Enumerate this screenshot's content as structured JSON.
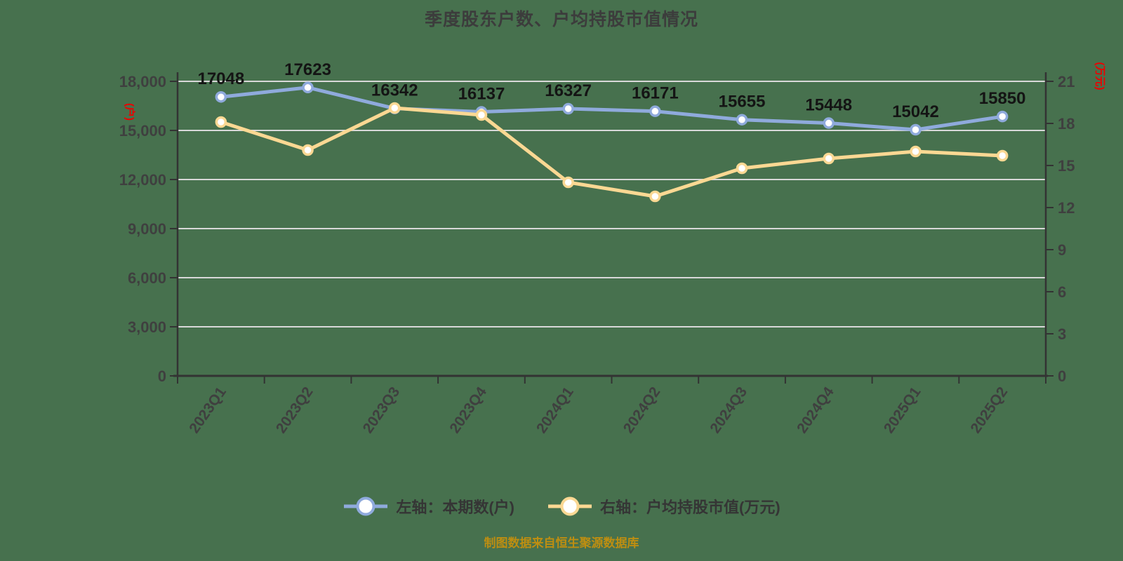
{
  "title": "季度股东户数、户均持股市值情况",
  "footer": "制图数据来自恒生聚源数据库",
  "colors": {
    "background": "#47714E",
    "title": "#3C3C3C",
    "grid": "#D8D8D8",
    "axis": "#333333",
    "tick_label": "#3F3F3F",
    "data_label": "#141414",
    "unit_label": "#EE0000",
    "footer": "#BE8E11",
    "legend_text": "#353535",
    "series_blue": "#8FAADC",
    "series_yellow": "#FBD893",
    "marker_fill": "#FFFFFF"
  },
  "chart_data": {
    "type": "line",
    "title": "季度股东户数、户均持股市值情况",
    "categories": [
      "2023Q1",
      "2023Q2",
      "2023Q3",
      "2023Q4",
      "2024Q1",
      "2024Q2",
      "2024Q3",
      "2024Q4",
      "2025Q1",
      "2025Q2"
    ],
    "series": [
      {
        "name": "左轴：本期数(户)",
        "axis": "left",
        "color_key": "series_blue",
        "show_labels": true,
        "values": [
          17048,
          17623,
          16342,
          16137,
          16327,
          16171,
          15655,
          15448,
          15042,
          15850
        ]
      },
      {
        "name": "右轴：户均持股市值(万元)",
        "axis": "right",
        "color_key": "series_yellow",
        "show_labels": false,
        "values": [
          18.1,
          16.1,
          19.1,
          18.6,
          13.8,
          12.8,
          14.8,
          15.5,
          16.0,
          15.7
        ]
      }
    ],
    "left_axis": {
      "unit": "(户)",
      "min": 0,
      "max": 18000,
      "tick_step": 3000,
      "tick_labels": [
        "18,000",
        "15,000",
        "12,000",
        "9,000",
        "6,000",
        "3,000",
        "0"
      ]
    },
    "right_axis": {
      "unit": "(万元)",
      "min": 0,
      "max": 21,
      "tick_step": 3,
      "tick_labels": [
        "21",
        "18",
        "15",
        "12",
        "9",
        "6",
        "3",
        "0"
      ]
    },
    "grid": true,
    "legend_position": "bottom",
    "x_label_rotation_deg": -55
  },
  "legend": {
    "items": [
      {
        "label": "左轴：本期数(户)",
        "color_key": "series_blue"
      },
      {
        "label": "右轴：户均持股市值(万元)",
        "color_key": "series_yellow"
      }
    ]
  }
}
